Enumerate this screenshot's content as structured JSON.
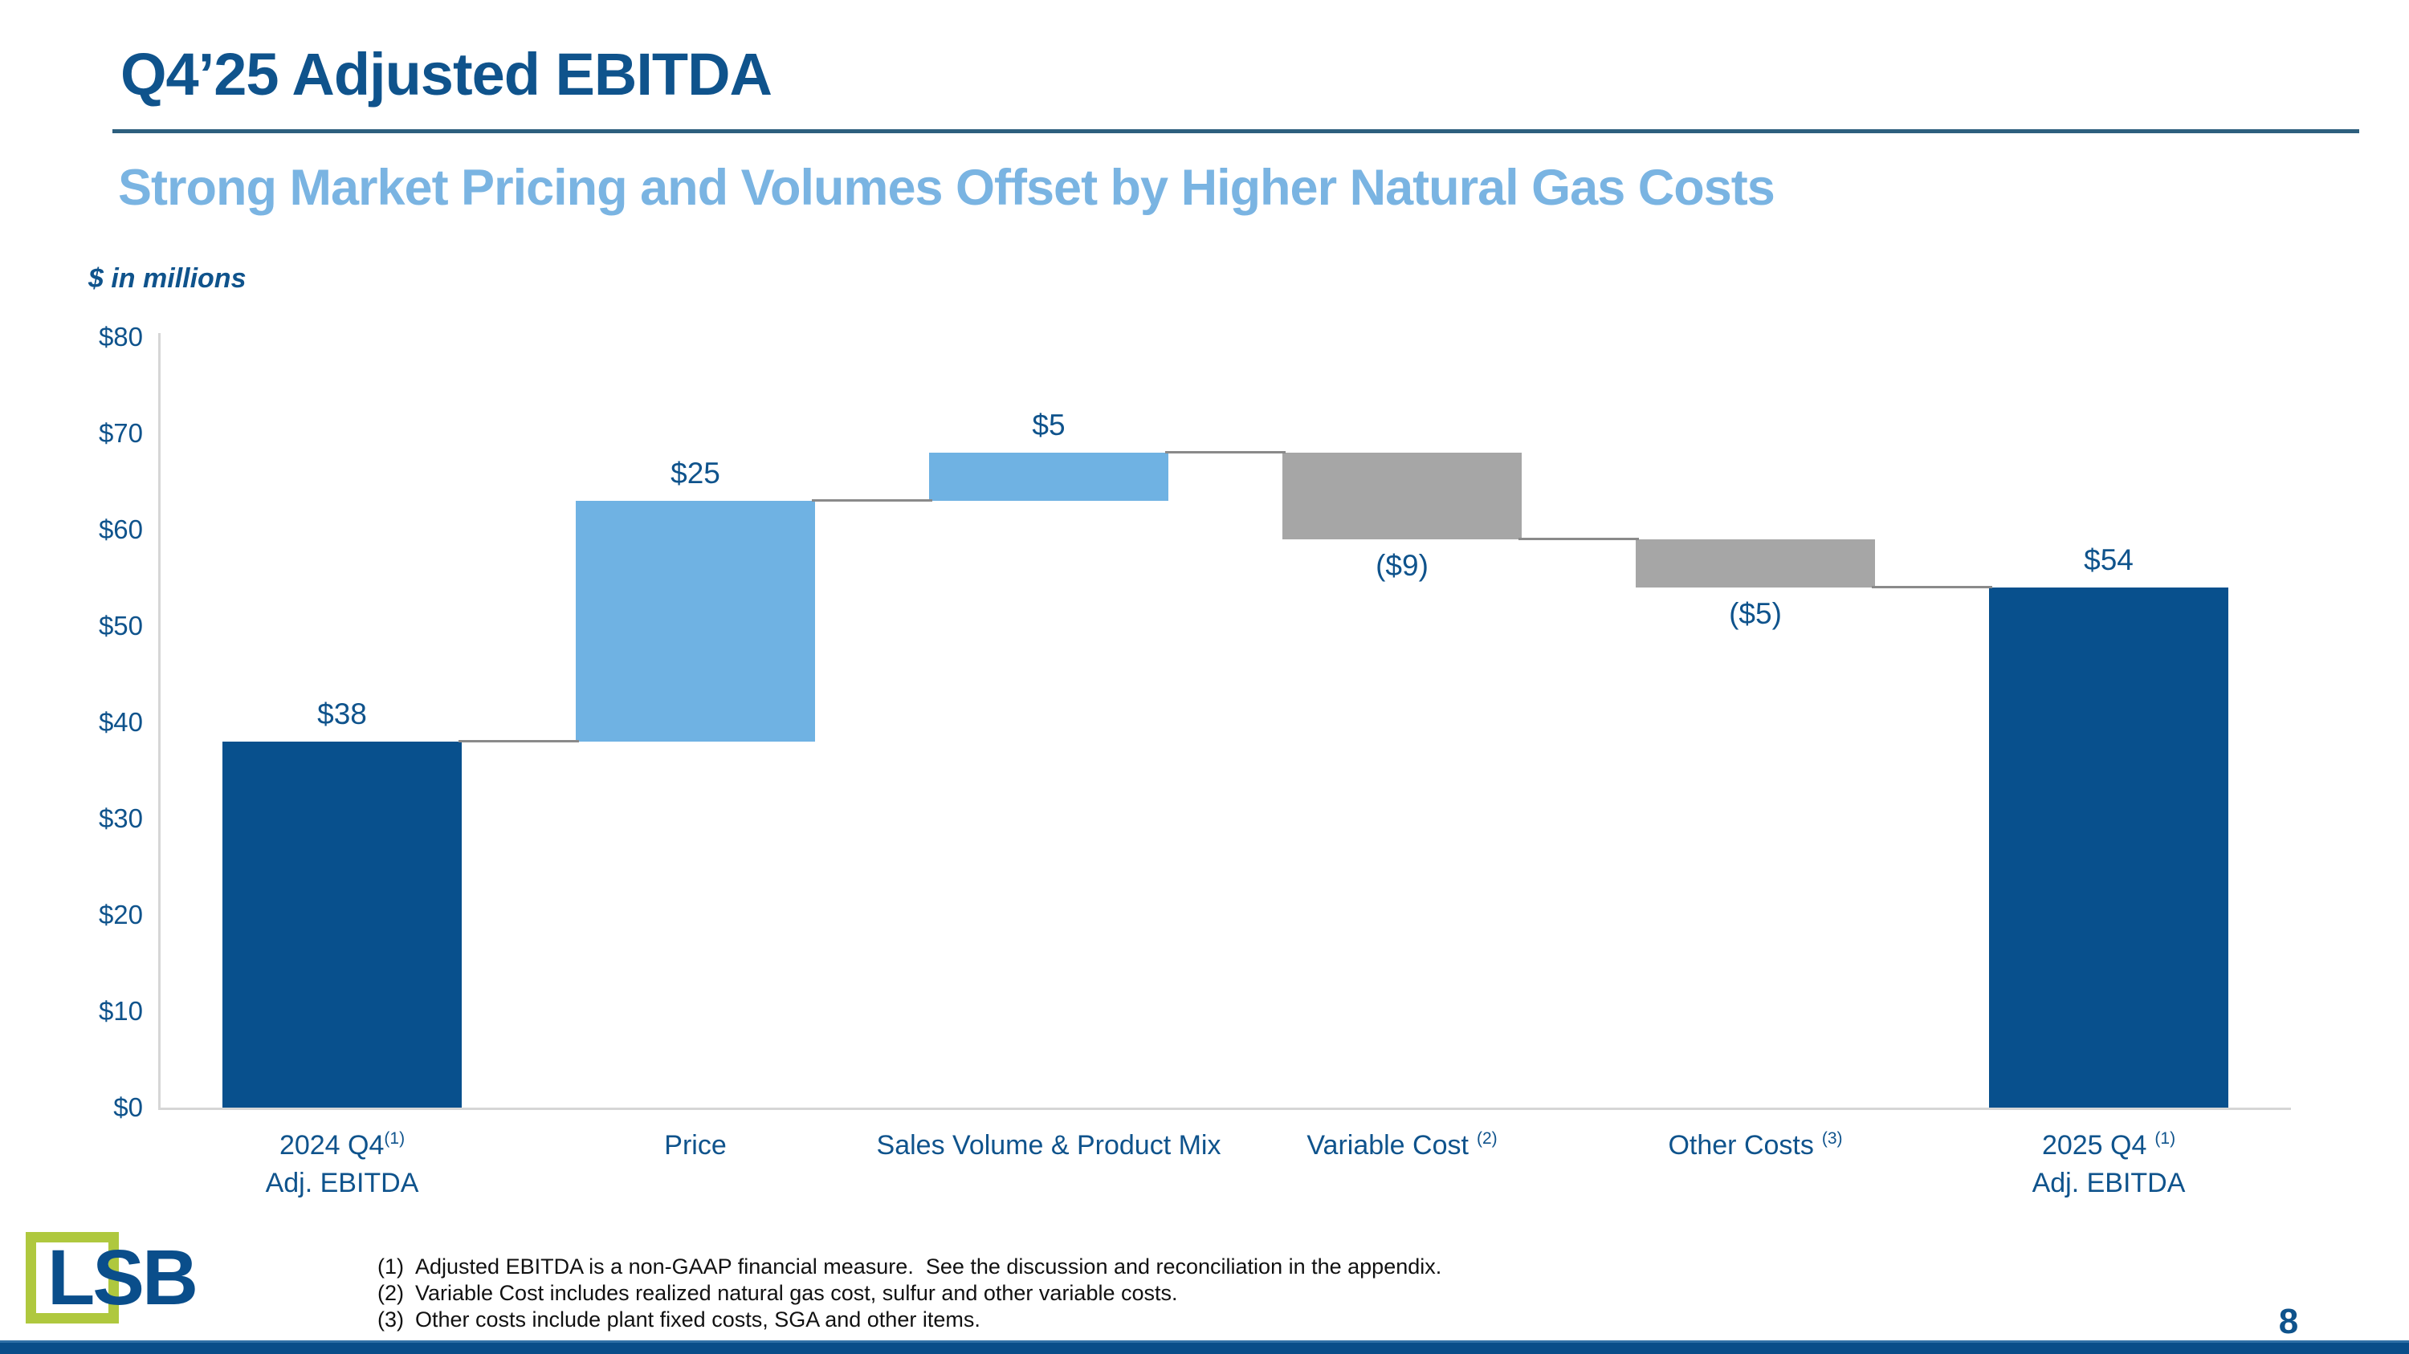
{
  "slide": {
    "title": "Q4’25 Adjusted EBITDA",
    "subtitle": "Strong Market Pricing and Volumes Offset by Higher Natural Gas Costs",
    "units_label": "$ in millions",
    "page_number": "8",
    "logo_text": "LSB"
  },
  "footnotes": [
    {
      "marker": "(1)",
      "text": "Adjusted EBITDA is a non-GAAP financial measure.  See the discussion and reconciliation in the appendix."
    },
    {
      "marker": "(2)",
      "text": "Variable Cost includes realized natural gas cost, sulfur and other variable costs."
    },
    {
      "marker": "(3)",
      "text": "Other costs include plant fixed costs, SGA and other items."
    }
  ],
  "colors": {
    "navy_bar": "#08508D",
    "light_blue_bar": "#6FB2E3",
    "gray_bar": "#A6A6A6",
    "navy_text": "#0F538C",
    "subtitle_blue": "#7AB4E2",
    "connector_gray": "#8A8A8A",
    "axis_gray": "#D6D6D6",
    "logo_green": "#AFC83E",
    "divider_teal": "#2D5F7E",
    "footer_bar_navy": "#094D89"
  },
  "chart_data": {
    "type": "bar",
    "subtype": "waterfall",
    "title": "Q4'25 Adjusted EBITDA bridge",
    "ylabel": "$ in millions",
    "ylim": [
      0,
      80
    ],
    "ytick_interval": 10,
    "ytick_labels": [
      "$0",
      "$10",
      "$20",
      "$30",
      "$40",
      "$50",
      "$60",
      "$70",
      "$80"
    ],
    "grid": false,
    "legend": "none",
    "bars": [
      {
        "category": "2024 Q4",
        "category_sup": "(1)",
        "category_sup_spaced": false,
        "category_line2": "Adj. EBITDA",
        "role": "total",
        "start": 0,
        "end": 38,
        "value": 38,
        "value_label": "$38",
        "value_label_position": "above"
      },
      {
        "category": "Price",
        "category_sup": "",
        "category_sup_spaced": false,
        "category_line2": "",
        "role": "increase",
        "start": 38,
        "end": 63,
        "value": 25,
        "value_label": "$25",
        "value_label_position": "above"
      },
      {
        "category": "Sales Volume & Product Mix",
        "category_sup": "",
        "category_sup_spaced": false,
        "category_line2": "",
        "role": "increase",
        "start": 63,
        "end": 68,
        "value": 5,
        "value_label": "$5",
        "value_label_position": "above"
      },
      {
        "category": "Variable Cost",
        "category_sup": "(2)",
        "category_sup_spaced": true,
        "category_line2": "",
        "role": "decrease",
        "start": 68,
        "end": 59,
        "value": -9,
        "value_label": "($9)",
        "value_label_position": "below"
      },
      {
        "category": "Other Costs",
        "category_sup": "(3)",
        "category_sup_spaced": true,
        "category_line2": "",
        "role": "decrease",
        "start": 59,
        "end": 54,
        "value": -5,
        "value_label": "($5)",
        "value_label_position": "below"
      },
      {
        "category": "2025 Q4",
        "category_sup": "(1)",
        "category_sup_spaced": true,
        "category_line2": "Adj. EBITDA",
        "role": "total",
        "start": 0,
        "end": 54,
        "value": 54,
        "value_label": "$54",
        "value_label_position": "above"
      }
    ]
  }
}
